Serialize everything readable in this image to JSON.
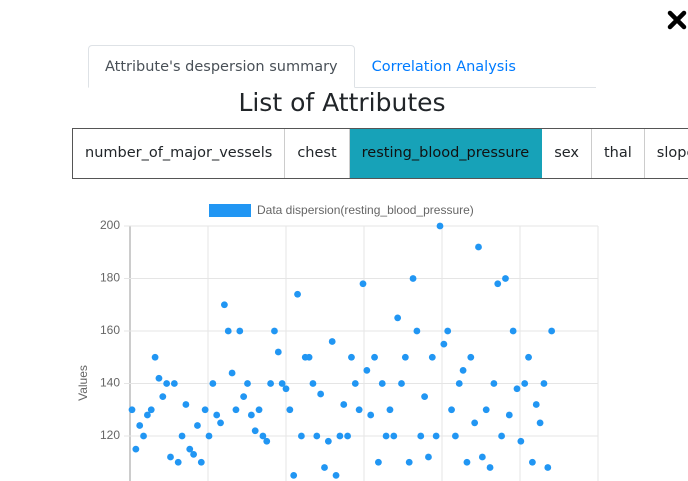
{
  "tabs": [
    "Attribute's despersion summary",
    "Correlation Analysis"
  ],
  "active_tab": 0,
  "heading": "List of Attributes",
  "attributes": [
    "number_of_major_vessels",
    "chest",
    "resting_blood_pressure",
    "sex",
    "thal",
    "slope"
  ],
  "active_attribute": 2,
  "chart_data": {
    "type": "scatter",
    "ylabel": "Values",
    "ylim": [
      100,
      200
    ],
    "yticks": [
      120,
      140,
      160,
      180,
      200
    ],
    "grid": true,
    "series": [
      {
        "name": "Data dispersion(resting_blood_pressure)",
        "color": "#2196f3",
        "values": [
          130,
          115,
          124,
          120,
          128,
          130,
          150,
          142,
          135,
          140,
          112,
          140,
          110,
          120,
          132,
          115,
          113,
          124,
          110,
          130,
          120,
          140,
          128,
          125,
          170,
          160,
          144,
          130,
          160,
          135,
          140,
          128,
          122,
          130,
          120,
          118,
          140,
          160,
          152,
          140,
          138,
          130,
          105,
          174,
          120,
          150,
          150,
          140,
          120,
          136,
          108,
          118,
          156,
          105,
          120,
          132,
          120,
          150,
          140,
          130,
          178,
          145,
          128,
          150,
          110,
          140,
          120,
          130,
          120,
          165,
          140,
          150,
          110,
          180,
          160,
          120,
          135,
          112,
          150,
          120,
          200,
          155,
          160,
          130,
          120,
          140,
          145,
          110,
          150,
          125,
          192,
          112,
          130,
          108,
          140,
          178,
          120,
          180,
          128,
          160,
          138,
          118,
          140,
          150,
          110,
          132,
          125,
          140,
          108,
          160
        ]
      }
    ]
  }
}
